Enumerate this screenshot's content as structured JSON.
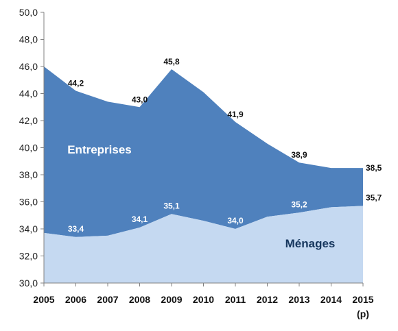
{
  "chart_data": {
    "type": "area",
    "stacked": true,
    "x": [
      "2005",
      "2006",
      "2007",
      "2008",
      "2009",
      "2010",
      "2011",
      "2012",
      "2013",
      "2014",
      "2015"
    ],
    "x_note": "(p)",
    "ylim": [
      30,
      50
    ],
    "yticks": [
      "30,0",
      "32,0",
      "34,0",
      "36,0",
      "38,0",
      "40,0",
      "42,0",
      "44,0",
      "46,0",
      "48,0",
      "50,0"
    ],
    "grid": false,
    "series": [
      {
        "name": "Ménages",
        "color": "#c5d9f1",
        "label_color": "#17375e",
        "values": [
          33.7,
          33.4,
          33.5,
          34.1,
          35.1,
          34.6,
          34.0,
          34.9,
          35.2,
          35.6,
          35.7
        ]
      },
      {
        "name": "Entreprises",
        "color": "#4f81bd",
        "label_color": "#ffffff",
        "values_total": [
          46.0,
          44.2,
          43.4,
          43.0,
          45.8,
          44.1,
          41.9,
          40.3,
          38.9,
          38.5,
          38.5
        ]
      }
    ],
    "data_labels": {
      "menages": [
        {
          "index": 1,
          "text": "33,4"
        },
        {
          "index": 3,
          "text": "34,1"
        },
        {
          "index": 4,
          "text": "35,1"
        },
        {
          "index": 6,
          "text": "34,0"
        },
        {
          "index": 8,
          "text": "35,2"
        },
        {
          "index": 10,
          "text": "35,7"
        }
      ],
      "total": [
        {
          "index": 1,
          "text": "44,2"
        },
        {
          "index": 3,
          "text": "43,0"
        },
        {
          "index": 4,
          "text": "45,8"
        },
        {
          "index": 6,
          "text": "41,9"
        },
        {
          "index": 8,
          "text": "38,9"
        },
        {
          "index": 10,
          "text": "38,5"
        }
      ]
    },
    "axis_color": "#808080"
  }
}
